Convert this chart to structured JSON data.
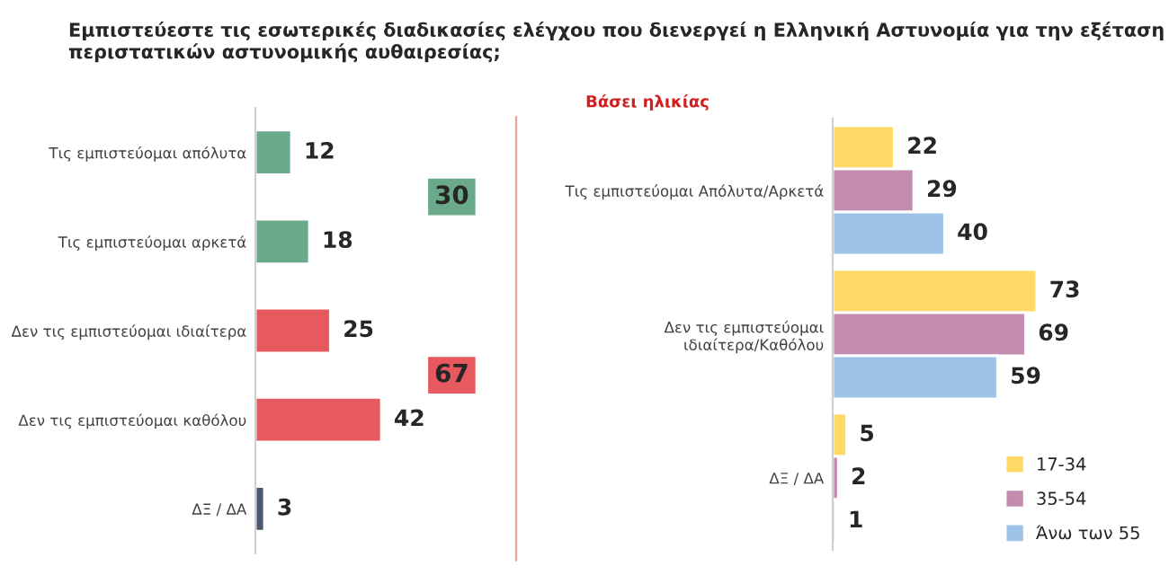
{
  "chart_data": [
    {
      "type": "bar",
      "orientation": "horizontal",
      "title": "Εμπιστεύεστε τις εσωτερικές διαδικασίες ελέγχου που διενεργεί η Ελληνική Αστυνομία για την εξέταση περιστατικών αστυνομικής αυθαιρεσίας;",
      "categories": [
        "Τις εμπιστεύομαι απόλυτα",
        "Τις εμπιστεύομαι αρκετά",
        "Δεν τις εμπιστεύομαι ιδιαίτερα",
        "Δεν τις εμπιστεύομαι καθόλου",
        "ΔΞ / ΔΑ"
      ],
      "values": [
        12,
        18,
        25,
        42,
        3
      ],
      "colors": [
        "#6aaa8a",
        "#6aaa8a",
        "#e8595f",
        "#e8595f",
        "#4a5a6e"
      ],
      "data_labels": true,
      "annotations": [
        "30",
        "67"
      ]
    },
    {
      "type": "bar",
      "orientation": "horizontal",
      "title": "Βάσει ηλικίας",
      "categories": [
        "Τις εμπιστεύομαι Απόλυτα/Αρκετά",
        "Δεν τις εμπιστεύομαι\nιδιαίτερα/Καθόλου",
        "ΔΞ / ΔΑ"
      ],
      "series": [
        {
          "name": "17-34",
          "color": "#ffd966",
          "values": [
            22,
            73,
            5
          ]
        },
        {
          "name": "35-54",
          "color": "#c38bb0",
          "values": [
            29,
            69,
            2
          ]
        },
        {
          "name": "Άνω των 55",
          "color": "#9dc3e6",
          "values": [
            40,
            59,
            1
          ]
        }
      ],
      "data_labels": true,
      "legend": "bottom right"
    }
  ]
}
